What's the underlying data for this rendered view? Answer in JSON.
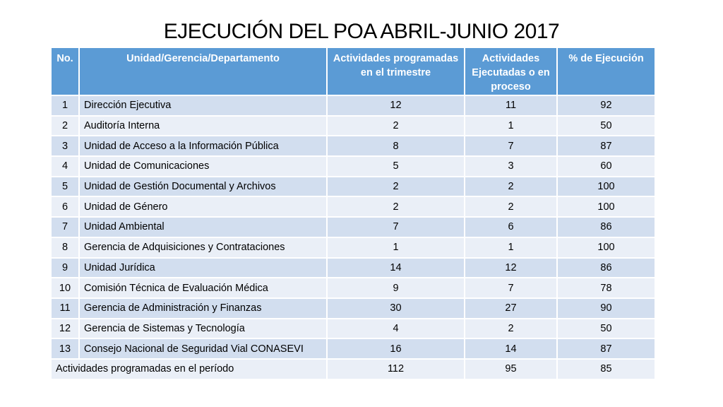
{
  "title": "EJECUCIÓN DEL POA ABRIL-JUNIO 2017",
  "columns": {
    "no": "No.",
    "unit": "Unidad/Gerencia/Departamento",
    "programmed": "Actividades programadas en el trimestre",
    "executed": "Actividades Ejecutadas o en proceso",
    "percent": "% de Ejecución"
  },
  "rows": [
    {
      "no": "1",
      "unit": "Dirección Ejecutiva",
      "programmed": "12",
      "executed": "11",
      "percent": "92"
    },
    {
      "no": "2",
      "unit": "Auditoría Interna",
      "programmed": "2",
      "executed": "1",
      "percent": "50"
    },
    {
      "no": "3",
      "unit": "Unidad de Acceso a la Información Pública",
      "programmed": "8",
      "executed": "7",
      "percent": "87"
    },
    {
      "no": "4",
      "unit": "Unidad de Comunicaciones",
      "programmed": "5",
      "executed": "3",
      "percent": "60"
    },
    {
      "no": "5",
      "unit": "Unidad de Gestión Documental y Archivos",
      "programmed": "2",
      "executed": "2",
      "percent": "100"
    },
    {
      "no": "6",
      "unit": "Unidad de Género",
      "programmed": "2",
      "executed": "2",
      "percent": "100"
    },
    {
      "no": "7",
      "unit": "Unidad Ambiental",
      "programmed": "7",
      "executed": "6",
      "percent": "86"
    },
    {
      "no": "8",
      "unit": "Gerencia de Adquisiciones y Contrataciones",
      "programmed": "1",
      "executed": "1",
      "percent": "100"
    },
    {
      "no": "9",
      "unit": "Unidad Jurídica",
      "programmed": "14",
      "executed": "12",
      "percent": "86"
    },
    {
      "no": "10",
      "unit": "Comisión Técnica de Evaluación Médica",
      "programmed": "9",
      "executed": "7",
      "percent": "78"
    },
    {
      "no": "11",
      "unit": "Gerencia de Administración y Finanzas",
      "programmed": "30",
      "executed": "27",
      "percent": "90"
    },
    {
      "no": "12",
      "unit": "Gerencia de Sistemas y Tecnología",
      "programmed": "4",
      "executed": "2",
      "percent": "50"
    },
    {
      "no": "13",
      "unit": "Consejo Nacional de Seguridad Vial CONASEVI",
      "programmed": "16",
      "executed": "14",
      "percent": "87"
    }
  ],
  "total": {
    "label": "Actividades programadas en el período",
    "programmed": "112",
    "executed": "95",
    "percent": "85"
  },
  "colors": {
    "header_bg": "#5b9bd5",
    "row_dark": "#d2deef",
    "row_light": "#eaeff7"
  }
}
